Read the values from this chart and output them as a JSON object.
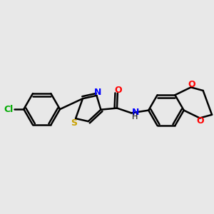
{
  "background_color": "#e8e8e8",
  "bond_color": "#000000",
  "atom_colors": {
    "N": "#0000ff",
    "O": "#ff0000",
    "S": "#c8a000",
    "Cl": "#00aa00",
    "C": "#000000",
    "H": "#000000"
  },
  "figsize": [
    3.0,
    3.0
  ],
  "dpi": 100
}
